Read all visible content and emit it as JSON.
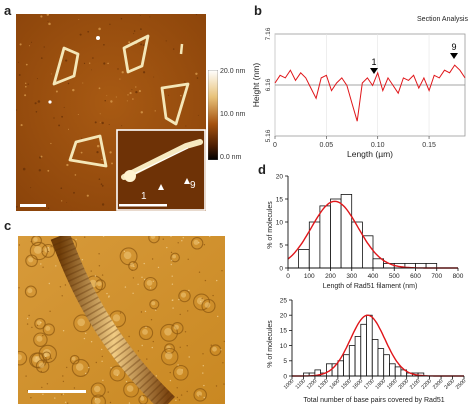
{
  "panels": {
    "a": {
      "label": "a"
    },
    "b": {
      "label": "b"
    },
    "c": {
      "label": "c"
    },
    "d": {
      "label": "d"
    }
  },
  "colorbar": {
    "top": "20.0 nm",
    "mid": "10.0 nm",
    "bottom": "0.0 nm"
  },
  "inset": {
    "marker1": "1",
    "marker9": "9"
  },
  "section": {
    "title": "Section Analysis",
    "xlabel": "Length (µm)",
    "ylabel": "Height (nm)",
    "marker1": "1",
    "marker9": "9"
  },
  "chart_data": [
    {
      "type": "line",
      "title": "Section Analysis",
      "xlabel": "Length (µm)",
      "ylabel": "Height (nm)",
      "xlim": [
        0,
        0.185
      ],
      "ylim": [
        5.16,
        7.16
      ],
      "xticks": [
        0,
        0.05,
        0.1,
        0.15
      ],
      "xtick_labels": [
        "0",
        "0.05",
        "0.10",
        "0.15"
      ],
      "yticks": [
        5.16,
        6.16,
        7.16
      ],
      "ytick_labels": [
        "5.16",
        "6.16",
        "7.16"
      ],
      "reference_line": 6.16,
      "x": [
        0,
        0.005,
        0.01,
        0.015,
        0.02,
        0.025,
        0.03,
        0.035,
        0.04,
        0.045,
        0.05,
        0.055,
        0.06,
        0.065,
        0.07,
        0.075,
        0.08,
        0.085,
        0.09,
        0.095,
        0.1,
        0.105,
        0.11,
        0.115,
        0.12,
        0.125,
        0.13,
        0.135,
        0.14,
        0.145,
        0.15,
        0.155,
        0.16,
        0.165,
        0.17,
        0.175,
        0.18,
        0.185
      ],
      "y": [
        6.2,
        6.35,
        6.3,
        6.45,
        6.25,
        6.4,
        6.3,
        6.1,
        5.9,
        6.3,
        6.35,
        6.05,
        6.2,
        6.3,
        6.15,
        5.8,
        5.45,
        6.2,
        6.3,
        6.15,
        6.4,
        6.05,
        6.3,
        6.15,
        6.0,
        6.3,
        6.25,
        6.35,
        6.1,
        6.3,
        6.05,
        6.35,
        6.3,
        6.45,
        6.4,
        6.55,
        6.45,
        6.3
      ]
    },
    {
      "type": "bar",
      "xlabel": "Length of Rad51 filament (nm)",
      "ylabel": "% of molecules",
      "xlim": [
        0,
        800
      ],
      "ylim": [
        0,
        20
      ],
      "xticks": [
        0,
        100,
        200,
        300,
        400,
        500,
        600,
        700,
        800
      ],
      "yticks": [
        0,
        5,
        10,
        15,
        20
      ],
      "bin_width": 50,
      "bin_starts": [
        50,
        100,
        150,
        200,
        250,
        300,
        350,
        400,
        450,
        500,
        550,
        600,
        650
      ],
      "values": [
        4,
        10,
        13.5,
        15,
        16,
        10,
        7,
        2,
        1,
        1,
        1,
        1,
        1
      ],
      "fit": "gaussian",
      "fit_mean": 220,
      "fit_sd": 110,
      "fit_peak": 14.5
    },
    {
      "type": "bar",
      "xlabel": "Total number of base pairs covered by Rad51",
      "ylabel": "% of molecules",
      "xlim": [
        1000,
        2500
      ],
      "ylim": [
        0,
        25
      ],
      "xticks": [
        1000,
        1100,
        1200,
        1300,
        1400,
        1500,
        1600,
        1700,
        1800,
        1900,
        2000,
        2100,
        2200,
        2300,
        2400,
        2500
      ],
      "xtick_labels": [
        "1000",
        "1100",
        "1200",
        "1300",
        "1400",
        "1500",
        "1600",
        "1700",
        "1800",
        "1900",
        "2000",
        "2100",
        "2200",
        "2300",
        "2400",
        "2500"
      ],
      "yticks": [
        0,
        5,
        10,
        15,
        20,
        25
      ],
      "bin_width": 50,
      "bin_starts": [
        1100,
        1150,
        1200,
        1250,
        1300,
        1350,
        1400,
        1450,
        1500,
        1550,
        1600,
        1650,
        1700,
        1750,
        1800,
        1850,
        1900,
        1950,
        2000,
        2050,
        2100
      ],
      "values": [
        1,
        1,
        2,
        1,
        4,
        4,
        5,
        7,
        10,
        13,
        17,
        20,
        12,
        9,
        7,
        4,
        3,
        2,
        1,
        1,
        1
      ],
      "fit": "gaussian",
      "fit_mean": 1660,
      "fit_sd": 150,
      "fit_peak": 20
    }
  ]
}
